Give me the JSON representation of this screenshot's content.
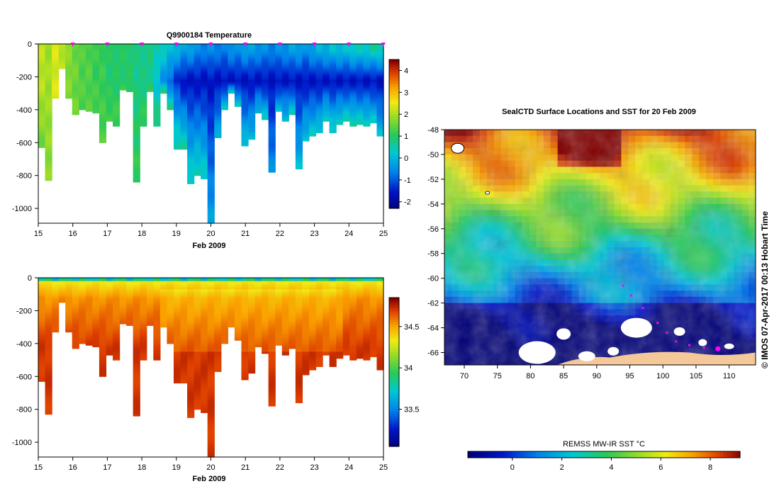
{
  "chart_data": [
    {
      "type": "heatmap",
      "title": "Q9900184  Temperature",
      "xlabel": "Feb 2009",
      "ylabel": "",
      "x_ticks": [
        "15",
        "16",
        "17",
        "18",
        "19",
        "20",
        "21",
        "22",
        "23",
        "24",
        "25"
      ],
      "xlim": [
        15,
        25
      ],
      "y_ticks": [
        "0",
        "-200",
        "-400",
        "-600",
        "-800",
        "-1000"
      ],
      "ylim": [
        -1090,
        0
      ],
      "colorbar_ticks": [
        "4",
        "3",
        "2",
        "1",
        "0",
        "-1",
        "-2"
      ],
      "colorbar_range": [
        -2.3,
        4.5
      ],
      "profile_times": [
        15.0,
        15.2,
        15.4,
        15.6,
        15.8,
        16.0,
        16.2,
        16.4,
        16.6,
        16.8,
        17.0,
        17.2,
        17.4,
        17.6,
        17.8,
        18.0,
        18.2,
        18.4,
        18.6,
        18.8,
        19.0,
        19.2,
        19.4,
        19.6,
        19.8,
        20.0,
        20.2,
        20.4,
        20.6,
        20.8,
        21.0,
        21.2,
        21.4,
        21.6,
        21.8,
        22.0,
        22.2,
        22.4,
        22.6,
        22.8,
        23.0,
        23.2,
        23.4,
        23.6,
        23.8,
        24.0,
        24.2,
        24.4,
        24.6,
        24.8,
        25.0
      ],
      "profile_max_depth": [
        630,
        830,
        330,
        150,
        330,
        430,
        400,
        410,
        420,
        600,
        470,
        500,
        280,
        290,
        840,
        500,
        290,
        500,
        300,
        400,
        640,
        640,
        850,
        800,
        820,
        1090,
        570,
        400,
        300,
        380,
        620,
        580,
        420,
        460,
        780,
        410,
        470,
        430,
        760,
        590,
        560,
        540,
        470,
        540,
        490,
        470,
        500,
        490,
        500,
        480,
        560
      ],
      "surface_temp": [
        2.2,
        2.0,
        2.4,
        2.2,
        1.8,
        1.6,
        1.4,
        1.4,
        1.2,
        1.2,
        1.0,
        1.0,
        1.0,
        1.0,
        0.8,
        0.8,
        0.8,
        0.6,
        0.4,
        0.2,
        0.0,
        -0.2,
        -0.2,
        -0.4,
        -0.6,
        -0.4,
        -0.6,
        -0.6,
        -0.4,
        -0.4,
        -0.2,
        -0.2,
        -0.4,
        -0.4,
        -0.6,
        -0.4,
        -0.4,
        -0.2,
        -0.2,
        -0.4,
        -0.2,
        0.0,
        0.0,
        0.2,
        0.2,
        0.2,
        0.4,
        0.4,
        0.4,
        0.6,
        0.6
      ],
      "deep_temp": [
        1.6,
        1.8,
        2.4,
        2.2,
        1.6,
        1.6,
        1.4,
        1.4,
        1.4,
        1.4,
        1.3,
        1.3,
        1.2,
        1.2,
        1.2,
        1.2,
        1.1,
        1.0,
        1.0,
        0.9,
        0.8,
        0.7,
        0.6,
        0.6,
        0.5,
        -0.2,
        0.0,
        0.4,
        0.4,
        0.5,
        0.3,
        0.2,
        0.2,
        0.4,
        -0.4,
        0.2,
        0.3,
        0.5,
        0.2,
        0.3,
        0.4,
        0.4,
        0.6,
        0.6,
        0.6,
        0.6,
        0.8,
        0.6,
        0.6,
        0.4,
        0.2
      ],
      "core_temp": -1.6,
      "surface_markers": [
        "16",
        "17",
        "18",
        "19",
        "20",
        "21",
        "22",
        "23",
        "24",
        "25"
      ]
    },
    {
      "type": "heatmap",
      "title": "",
      "xlabel": "Feb 2009",
      "ylabel": "",
      "x_ticks": [
        "15",
        "16",
        "17",
        "18",
        "19",
        "20",
        "21",
        "22",
        "23",
        "24",
        "25"
      ],
      "xlim": [
        15,
        25
      ],
      "y_ticks": [
        "0",
        "-200",
        "-400",
        "-600",
        "-800",
        "-1000"
      ],
      "ylim": [
        -1090,
        0
      ],
      "colorbar_ticks": [
        "34.5",
        "34",
        "33.5"
      ],
      "colorbar_range": [
        33.05,
        34.85
      ],
      "surface_salinity": 33.8,
      "deep_salinity": 34.72
    },
    {
      "type": "heatmap",
      "title": "SealCTD Surface Locations and SST for 20 Feb 2009",
      "xlabel": "",
      "ylabel": "",
      "x_ticks": [
        "70",
        "75",
        "80",
        "85",
        "90",
        "95",
        "100",
        "105",
        "110"
      ],
      "xlim": [
        67,
        114
      ],
      "y_ticks": [
        "-48",
        "-50",
        "-52",
        "-54",
        "-56",
        "-58",
        "-60",
        "-62",
        "-64",
        "-66"
      ],
      "ylim": [
        -67,
        -48
      ],
      "colorbar_title": "REMSS MW-IR SST °C",
      "colorbar_ticks": [
        "0",
        "2",
        "4",
        "6",
        "8"
      ],
      "colorbar_range": [
        -1.8,
        9.2
      ],
      "track": [
        [
          94.0,
          -60.6
        ],
        [
          95.2,
          -61.4
        ],
        [
          97.0,
          -62.4
        ],
        [
          99.2,
          -63.6
        ],
        [
          100.6,
          -64.4
        ],
        [
          102.0,
          -65.1
        ],
        [
          104.0,
          -65.4
        ],
        [
          106.2,
          -65.6
        ],
        [
          108.3,
          -65.7
        ]
      ],
      "track_last": [
        108.3,
        -65.7
      ]
    }
  ],
  "credit": "© IMOS 07-Apr-2017 00:13 Hobart Time",
  "colors": {
    "marker": "#ff00ff",
    "land": "#f5c89a",
    "ice": "#ffffff"
  }
}
